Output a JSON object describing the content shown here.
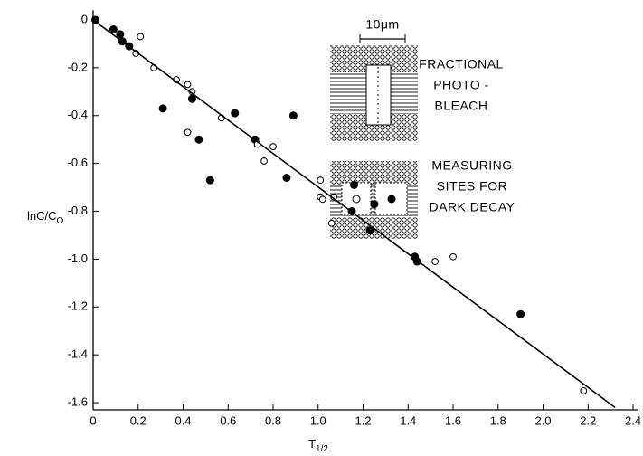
{
  "chart_data": {
    "type": "scatter",
    "x_label": "T",
    "x_label_sub": "1/2",
    "y_label": "lnC/C",
    "y_label_sub": "O",
    "xlim": [
      0,
      2.42
    ],
    "ylim": [
      -1.63,
      0.04
    ],
    "xticks": [
      0,
      0.2,
      0.4,
      0.6,
      0.8,
      {
        "value": 1,
        "label": "1.0"
      },
      1.2,
      1.4,
      1.6,
      1.8,
      {
        "value": 2,
        "label": "2.0"
      },
      2.2,
      2.4
    ],
    "yticks": [
      0,
      -0.2,
      -0.4,
      -0.6,
      -0.8,
      {
        "value": -1,
        "label": "-1.0"
      },
      -1.2,
      -1.4,
      -1.6
    ],
    "series": [
      {
        "type": "scatter",
        "marker": "filled",
        "color": "#000000",
        "x": [
          0.01,
          0.09,
          0.12,
          0.13,
          0.16,
          0.31,
          0.44,
          0.47,
          0.52,
          0.63,
          0.72,
          0.86,
          0.89,
          1.15,
          1.16,
          1.23,
          1.25,
          1.43,
          1.44,
          1.9
        ],
        "values": [
          0,
          -0.04,
          -0.06,
          -0.09,
          -0.11,
          -0.37,
          -0.33,
          -0.5,
          -0.67,
          -0.39,
          -0.5,
          -0.66,
          -0.4,
          -0.8,
          -0.69,
          -0.88,
          -0.77,
          -0.99,
          -1.01,
          -1.23
        ]
      },
      {
        "type": "scatter",
        "marker": "open",
        "color": "#000000",
        "x": [
          0.21,
          0.19,
          0.27,
          0.37,
          0.42,
          0.44,
          0.42,
          0.57,
          0.73,
          0.76,
          0.8,
          1.01,
          1.01,
          1.02,
          1.06,
          1.07,
          1.52,
          1.6,
          2.18
        ],
        "values": [
          -0.07,
          -0.14,
          -0.2,
          -0.25,
          -0.27,
          -0.3,
          -0.47,
          -0.41,
          -0.52,
          -0.59,
          -0.53,
          -0.67,
          -0.74,
          -0.75,
          -0.85,
          -0.74,
          -1.01,
          -0.99,
          -1.55
        ]
      },
      {
        "type": "line",
        "color": "#000000",
        "x": [
          0,
          2.32
        ],
        "values": [
          0,
          -1.62
        ]
      }
    ],
    "inset": {
      "scale_label": "10μm",
      "top_label": [
        "FRACTIONAL",
        "PHOTO -",
        "BLEACH"
      ],
      "bottom_label": [
        "MEASURING",
        "SITES FOR",
        "DARK DECAY"
      ]
    }
  }
}
